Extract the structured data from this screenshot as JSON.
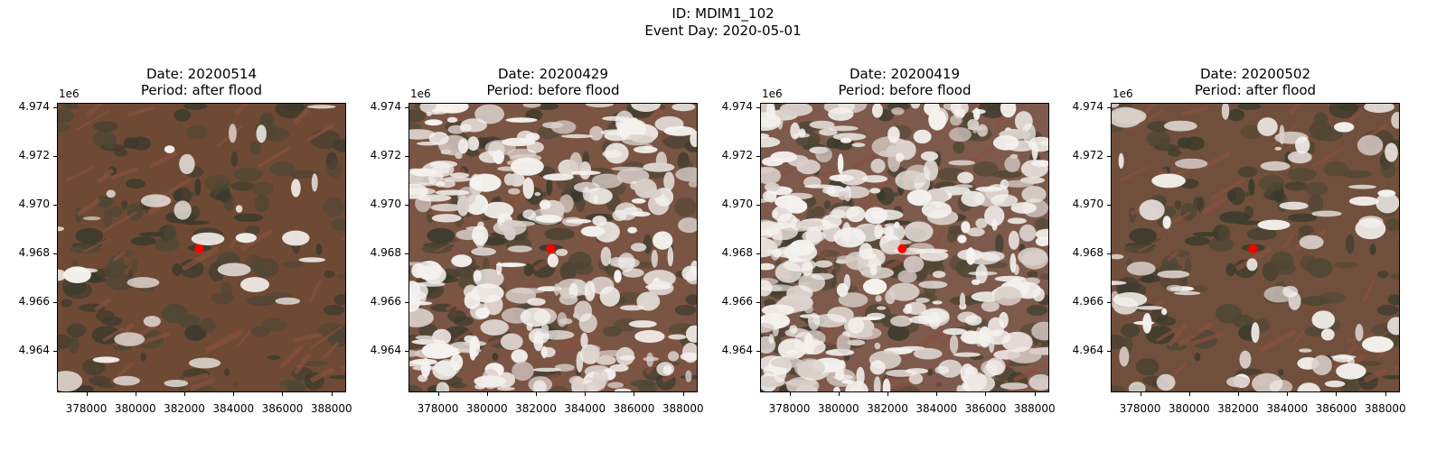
{
  "figure": {
    "title_line1": "ID: MDIM1_102",
    "title_line2": "Event Day: 2020-05-01"
  },
  "panels": [
    {
      "date": "Date: 20200514",
      "period": "Period: after flood",
      "snow": 0.06,
      "base_color": "#6e4a35"
    },
    {
      "date": "Date: 20200429",
      "period": "Period: before flood",
      "snow": 0.55,
      "base_color": "#7a5544"
    },
    {
      "date": "Date: 20200419",
      "period": "Period: before flood",
      "snow": 0.68,
      "base_color": "#7d5a4c"
    },
    {
      "date": "Date: 20200502",
      "period": "Period: after flood",
      "snow": 0.14,
      "base_color": "#70503c"
    }
  ],
  "axes": {
    "y_offset_label": "1e6",
    "y_ticks": [
      "4.974",
      "4.972",
      "4.970",
      "4.968",
      "4.966",
      "4.964"
    ],
    "x_ticks": [
      "378000",
      "380000",
      "382000",
      "384000",
      "386000",
      "388000"
    ]
  },
  "marker": {
    "x": 382600,
    "y": 4968200,
    "color": "#ff0000"
  }
}
